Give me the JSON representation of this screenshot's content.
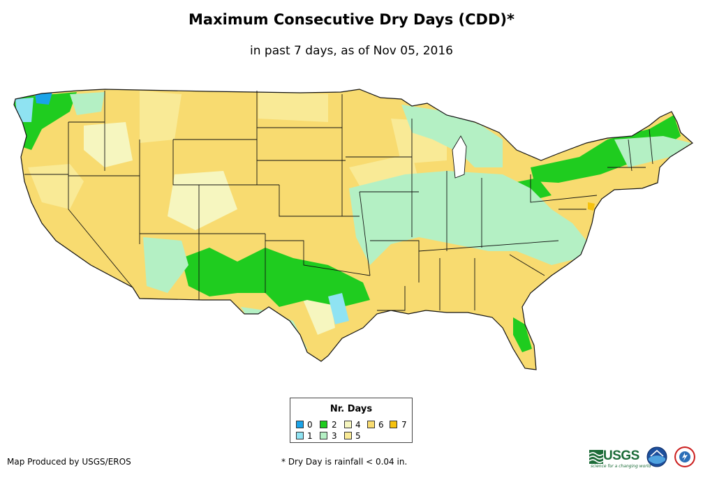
{
  "title": "Maximum Consecutive Dry Days (CDD)*",
  "subtitle": "in past 7 days, as of Nov 05, 2016",
  "legend": {
    "title": "Nr. Days",
    "items": [
      {
        "label": "0",
        "color": "#1aa3e8"
      },
      {
        "label": "1",
        "color": "#8fe3f2"
      },
      {
        "label": "2",
        "color": "#1fcc1f"
      },
      {
        "label": "3",
        "color": "#b4f0c4"
      },
      {
        "label": "4",
        "color": "#f6f6bf"
      },
      {
        "label": "5",
        "color": "#f9ea96"
      },
      {
        "label": "6",
        "color": "#f8db70"
      },
      {
        "label": "7",
        "color": "#f6c20e"
      }
    ]
  },
  "credit": "Map Produced by USGS/EROS",
  "footnote": "* Dry Day is rainfall < 0.04 in.",
  "logos": {
    "usgs": "USGS",
    "usgs_tagline": "science for a changing world",
    "noaa": "noaa",
    "nws": "National Weather Service"
  }
}
